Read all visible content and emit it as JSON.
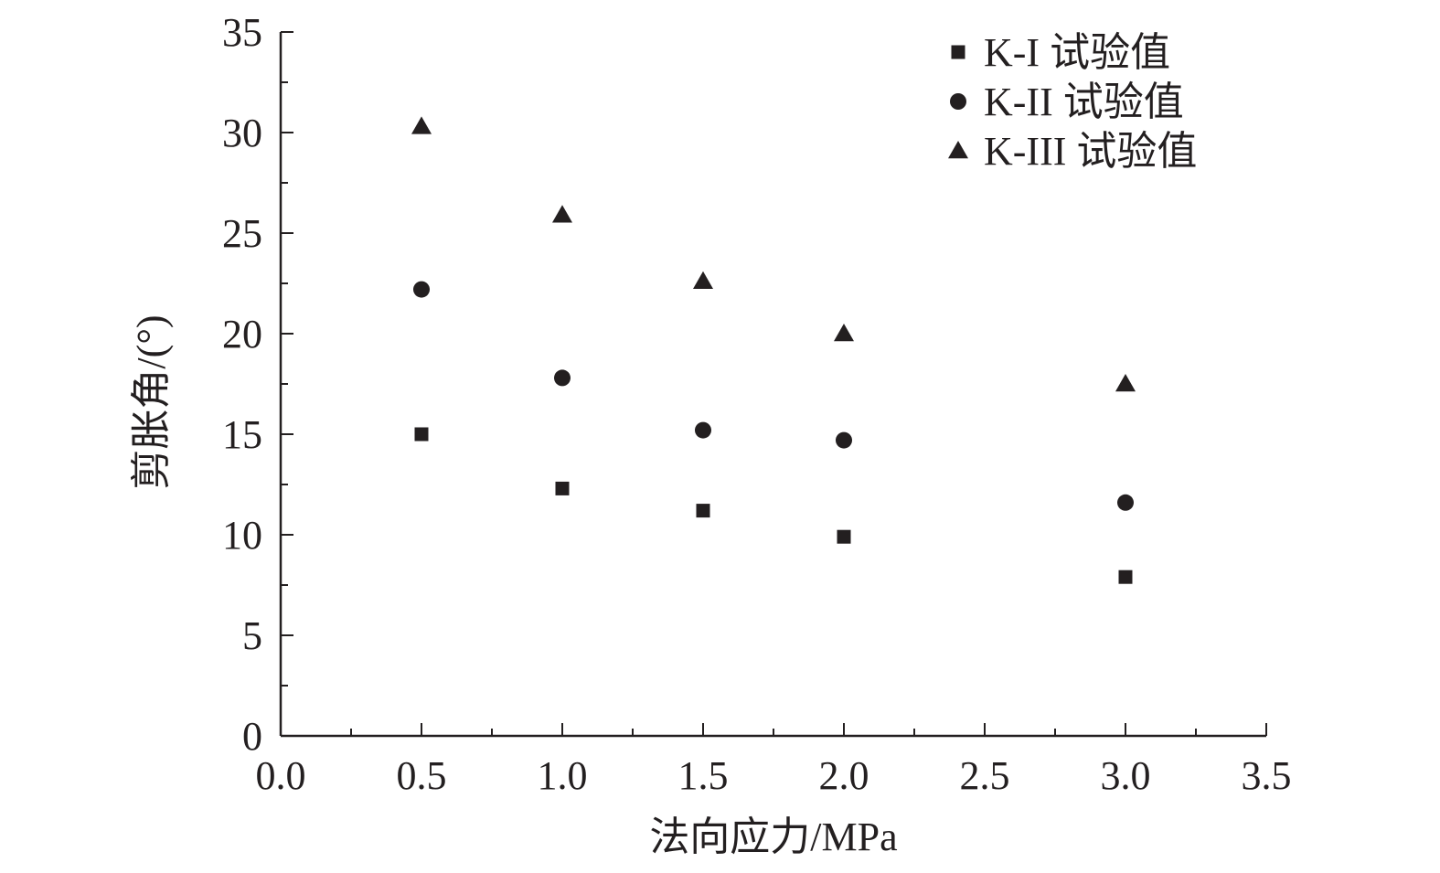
{
  "chart_data": {
    "type": "scatter",
    "title": "",
    "xlabel": "法向应力/MPa",
    "ylabel": "剪胀角/(°)",
    "xlim": [
      0,
      3.5
    ],
    "ylim": [
      0,
      35
    ],
    "x_ticks": [
      "0.0",
      "0.5",
      "1.0",
      "1.5",
      "2.0",
      "2.5",
      "3.0",
      "3.5"
    ],
    "y_ticks": [
      "0",
      "5",
      "10",
      "15",
      "20",
      "25",
      "30",
      "35"
    ],
    "grid": false,
    "legend_position": "top-right",
    "marker_color": "#231f20",
    "series": [
      {
        "name": "K-I 试验值",
        "marker": "square",
        "points": [
          [
            0.5,
            15.0
          ],
          [
            1.0,
            12.3
          ],
          [
            1.5,
            11.2
          ],
          [
            2.0,
            9.9
          ],
          [
            3.0,
            7.9
          ]
        ]
      },
      {
        "name": "K-II 试验值",
        "marker": "circle",
        "points": [
          [
            0.5,
            22.2
          ],
          [
            1.0,
            17.8
          ],
          [
            1.5,
            15.2
          ],
          [
            2.0,
            14.7
          ],
          [
            3.0,
            11.6
          ]
        ]
      },
      {
        "name": "K-III 试验值",
        "marker": "triangle",
        "points": [
          [
            0.5,
            30.3
          ],
          [
            1.0,
            25.9
          ],
          [
            1.5,
            22.6
          ],
          [
            2.0,
            20.0
          ],
          [
            3.0,
            17.5
          ]
        ]
      }
    ]
  }
}
